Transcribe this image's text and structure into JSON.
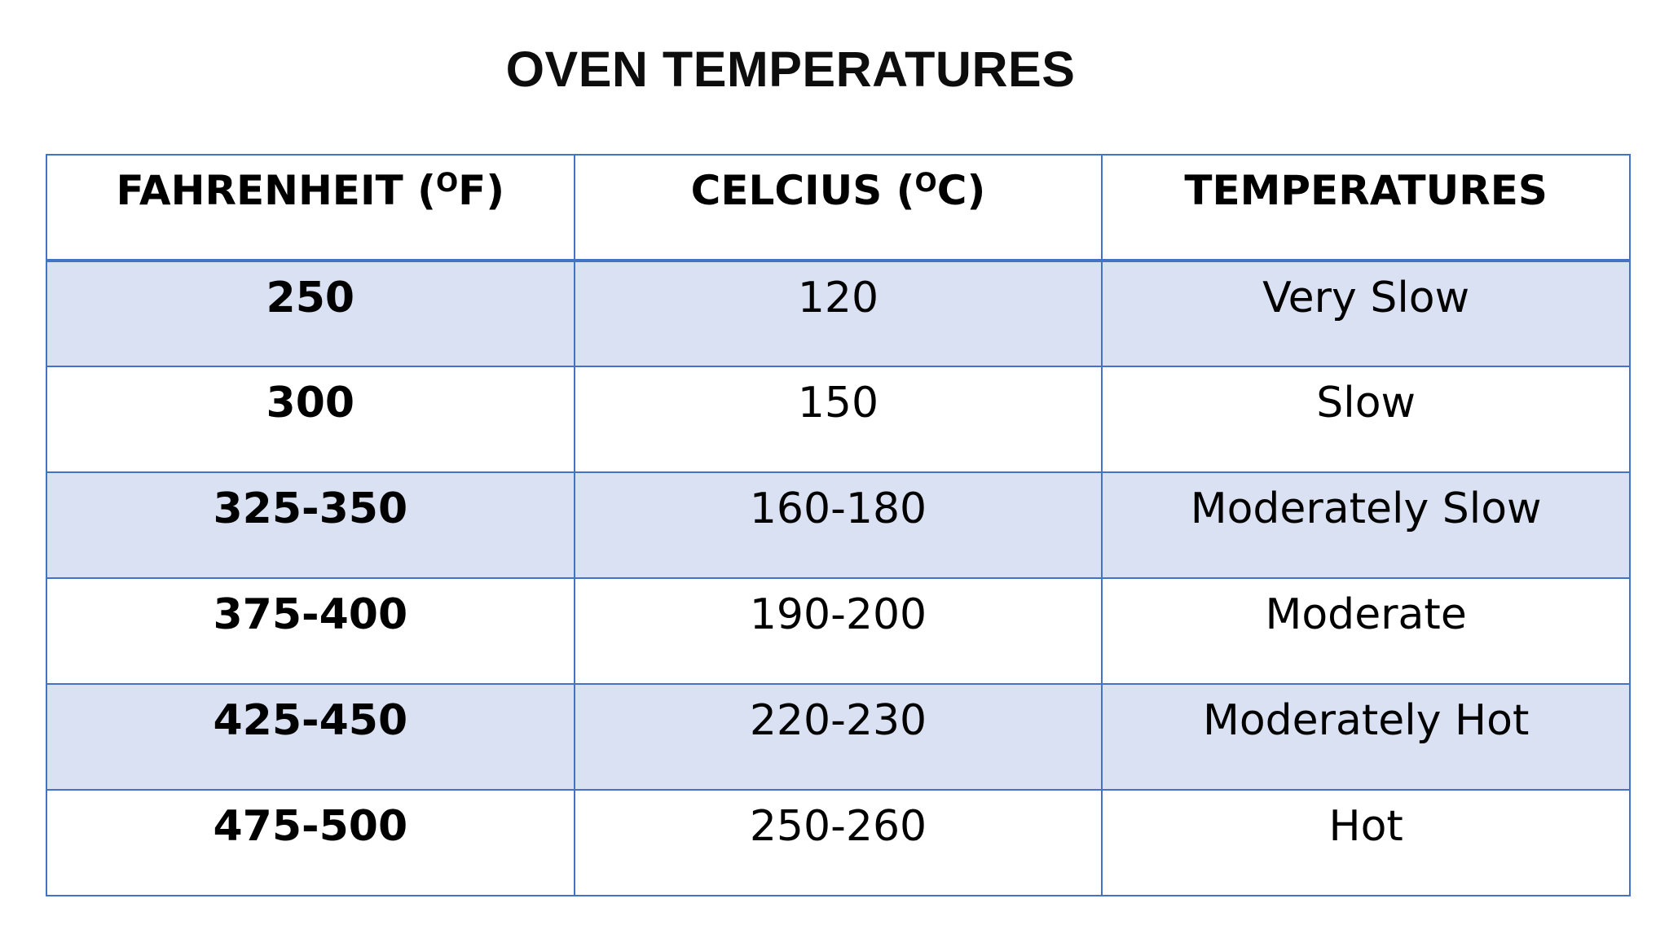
{
  "title": "OVEN TEMPERATURES",
  "colors": {
    "border": "#4472c4",
    "shaded_row": "#d9e1f2",
    "plain_row": "#ffffff"
  },
  "table": {
    "headers": [
      {
        "main": "FAHRENHEIT (",
        "sup": "O",
        "tail": "F)"
      },
      {
        "main": "CELCIUS (",
        "sup": "O",
        "tail": "C)"
      },
      {
        "main": "TEMPERATURES",
        "sup": "",
        "tail": ""
      }
    ],
    "rows": [
      {
        "fahrenheit": "250",
        "celsius": "120",
        "label": "Very Slow"
      },
      {
        "fahrenheit": "300",
        "celsius": "150",
        "label": "Slow"
      },
      {
        "fahrenheit": "325-350",
        "celsius": "160-180",
        "label": "Moderately Slow"
      },
      {
        "fahrenheit": "375-400",
        "celsius": "190-200",
        "label": "Moderate"
      },
      {
        "fahrenheit": "425-450",
        "celsius": "220-230",
        "label": "Moderately Hot"
      },
      {
        "fahrenheit": "475-500",
        "celsius": "250-260",
        "label": "Hot"
      }
    ]
  }
}
